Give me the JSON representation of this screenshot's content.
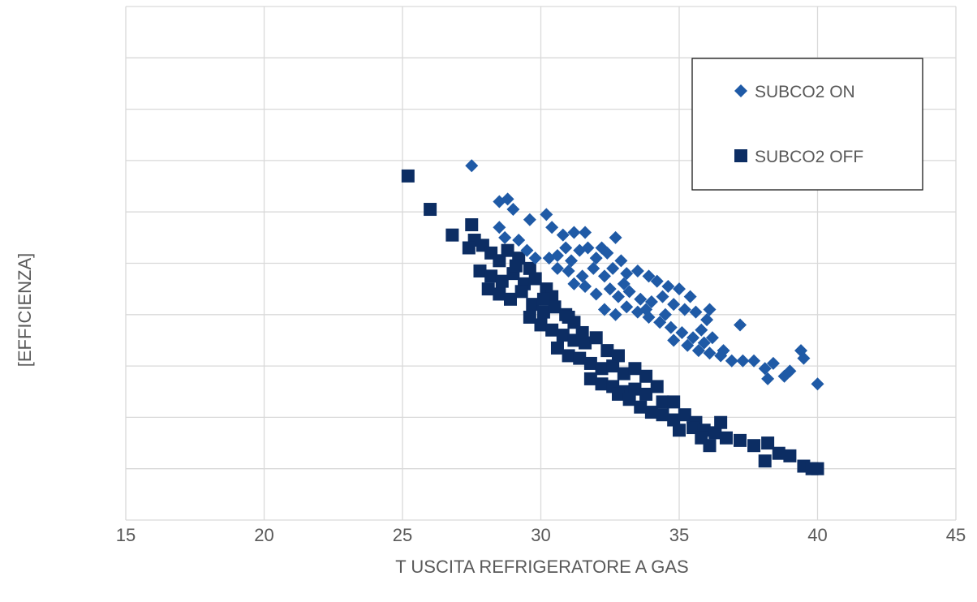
{
  "chart_data": {
    "type": "scatter",
    "title": "",
    "xlabel": "T USCITA REFRIGERATORE A GAS",
    "ylabel": "[EFFICIENZA]",
    "xlim": [
      15,
      45
    ],
    "x_ticks": [
      "15",
      "20",
      "25",
      "30",
      "35",
      "40",
      "45"
    ],
    "ylim": [
      0,
      10
    ],
    "y_ticks_labeled": false,
    "grid": true,
    "legend_position": "top-right",
    "colors": {
      "on": "#1f5aa6",
      "off": "#0c2d63",
      "grid": "#d9d9d9",
      "text": "#595959"
    },
    "series": [
      {
        "name": "SUBCO2 ON",
        "marker": "diamond",
        "points": [
          [
            27.5,
            6.9
          ],
          [
            28.5,
            6.2
          ],
          [
            28.8,
            6.25
          ],
          [
            29,
            6.05
          ],
          [
            29.6,
            5.85
          ],
          [
            30.2,
            5.95
          ],
          [
            30.4,
            5.7
          ],
          [
            30.8,
            5.55
          ],
          [
            31.2,
            5.6
          ],
          [
            31.6,
            5.6
          ],
          [
            32.2,
            5.3
          ],
          [
            32.7,
            5.5
          ],
          [
            28.5,
            5.7
          ],
          [
            28.7,
            5.5
          ],
          [
            29.2,
            5.45
          ],
          [
            29.5,
            5.25
          ],
          [
            29.8,
            5.1
          ],
          [
            30.3,
            5.1
          ],
          [
            30.6,
            5.15
          ],
          [
            30.9,
            5.3
          ],
          [
            31.1,
            5.05
          ],
          [
            31.4,
            5.25
          ],
          [
            31.7,
            5.3
          ],
          [
            32,
            5.1
          ],
          [
            32.4,
            5.2
          ],
          [
            32.9,
            5.05
          ],
          [
            30.6,
            4.9
          ],
          [
            31,
            4.85
          ],
          [
            31.5,
            4.75
          ],
          [
            31.9,
            4.9
          ],
          [
            32.3,
            4.75
          ],
          [
            32.6,
            4.9
          ],
          [
            33.1,
            4.8
          ],
          [
            33.5,
            4.85
          ],
          [
            33.9,
            4.75
          ],
          [
            34.2,
            4.65
          ],
          [
            34.6,
            4.55
          ],
          [
            35,
            4.5
          ],
          [
            35.4,
            4.35
          ],
          [
            31.2,
            4.6
          ],
          [
            31.6,
            4.55
          ],
          [
            32,
            4.4
          ],
          [
            32.5,
            4.5
          ],
          [
            32.8,
            4.35
          ],
          [
            33.2,
            4.45
          ],
          [
            33.6,
            4.3
          ],
          [
            34,
            4.25
          ],
          [
            34.4,
            4.35
          ],
          [
            34.8,
            4.2
          ],
          [
            35.2,
            4.1
          ],
          [
            35.6,
            4.05
          ],
          [
            36.1,
            4.1
          ],
          [
            36,
            3.9
          ],
          [
            32.3,
            4.1
          ],
          [
            32.7,
            4.0
          ],
          [
            33.1,
            4.15
          ],
          [
            33.5,
            4.05
          ],
          [
            33.9,
            3.95
          ],
          [
            34.3,
            3.85
          ],
          [
            34.7,
            3.75
          ],
          [
            35.1,
            3.65
          ],
          [
            35.5,
            3.55
          ],
          [
            35.9,
            3.45
          ],
          [
            36.2,
            3.55
          ],
          [
            36.6,
            3.3
          ],
          [
            37.2,
            3.8
          ],
          [
            34.8,
            3.5
          ],
          [
            35.3,
            3.4
          ],
          [
            35.7,
            3.3
          ],
          [
            36.1,
            3.25
          ],
          [
            36.5,
            3.2
          ],
          [
            36.9,
            3.1
          ],
          [
            37.3,
            3.1
          ],
          [
            37.7,
            3.1
          ],
          [
            38.1,
            2.95
          ],
          [
            38.4,
            3.05
          ],
          [
            38.2,
            2.75
          ],
          [
            38.8,
            2.8
          ],
          [
            39,
            2.9
          ],
          [
            39.4,
            3.3
          ],
          [
            39.5,
            3.15
          ],
          [
            40,
            2.65
          ],
          [
            33,
            4.6
          ],
          [
            33.8,
            4.1
          ],
          [
            34.5,
            4.0
          ],
          [
            35.8,
            3.7
          ]
        ]
      },
      {
        "name": "SUBCO2 OFF",
        "marker": "square",
        "points": [
          [
            25.2,
            6.7
          ],
          [
            26,
            6.05
          ],
          [
            26.8,
            5.55
          ],
          [
            27.5,
            5.75
          ],
          [
            27.6,
            5.45
          ],
          [
            27.4,
            5.3
          ],
          [
            27.9,
            5.35
          ],
          [
            28.2,
            5.2
          ],
          [
            28.5,
            5.05
          ],
          [
            28.8,
            5.25
          ],
          [
            29.2,
            5.1
          ],
          [
            29.6,
            4.9
          ],
          [
            27.8,
            4.85
          ],
          [
            28.2,
            4.75
          ],
          [
            28.6,
            4.65
          ],
          [
            29,
            4.8
          ],
          [
            29.4,
            4.6
          ],
          [
            29.8,
            4.7
          ],
          [
            30.2,
            4.5
          ],
          [
            30.4,
            4.35
          ],
          [
            28.1,
            4.5
          ],
          [
            28.5,
            4.4
          ],
          [
            28.9,
            4.3
          ],
          [
            29.3,
            4.45
          ],
          [
            29.7,
            4.2
          ],
          [
            30.1,
            4.05
          ],
          [
            30.5,
            4.15
          ],
          [
            30.9,
            4.0
          ],
          [
            31.2,
            3.85
          ],
          [
            29.6,
            3.95
          ],
          [
            30,
            3.8
          ],
          [
            30.4,
            3.7
          ],
          [
            30.8,
            3.6
          ],
          [
            31.2,
            3.5
          ],
          [
            31.6,
            3.45
          ],
          [
            32,
            3.55
          ],
          [
            32.4,
            3.3
          ],
          [
            30.6,
            3.35
          ],
          [
            31,
            3.2
          ],
          [
            31.4,
            3.15
          ],
          [
            31.8,
            3.05
          ],
          [
            32.2,
            2.95
          ],
          [
            32.6,
            3.0
          ],
          [
            33,
            2.85
          ],
          [
            33.4,
            2.95
          ],
          [
            31.8,
            2.75
          ],
          [
            32.2,
            2.65
          ],
          [
            32.6,
            2.6
          ],
          [
            33,
            2.5
          ],
          [
            33.4,
            2.55
          ],
          [
            33.8,
            2.45
          ],
          [
            34.2,
            2.6
          ],
          [
            34.4,
            2.3
          ],
          [
            32.8,
            2.45
          ],
          [
            33.2,
            2.35
          ],
          [
            33.6,
            2.2
          ],
          [
            34,
            2.1
          ],
          [
            34.4,
            2.05
          ],
          [
            34.8,
            1.95
          ],
          [
            35.2,
            2.05
          ],
          [
            35.6,
            1.9
          ],
          [
            35,
            1.75
          ],
          [
            35.5,
            1.8
          ],
          [
            35.9,
            1.75
          ],
          [
            36.3,
            1.7
          ],
          [
            36.7,
            1.6
          ],
          [
            37.2,
            1.55
          ],
          [
            37.7,
            1.45
          ],
          [
            38.2,
            1.5
          ],
          [
            38.6,
            1.3
          ],
          [
            39,
            1.25
          ],
          [
            39.5,
            1.05
          ],
          [
            39.8,
            1.0
          ],
          [
            40,
            1.0
          ],
          [
            36.1,
            1.45
          ],
          [
            36.5,
            1.9
          ],
          [
            38.1,
            1.15
          ],
          [
            35.8,
            1.6
          ],
          [
            31.5,
            3.65
          ],
          [
            32.8,
            3.2
          ],
          [
            33.8,
            2.8
          ],
          [
            34.8,
            2.3
          ],
          [
            30.1,
            4.3
          ],
          [
            29.1,
            4.95
          ],
          [
            31,
            3.95
          ]
        ]
      }
    ]
  }
}
